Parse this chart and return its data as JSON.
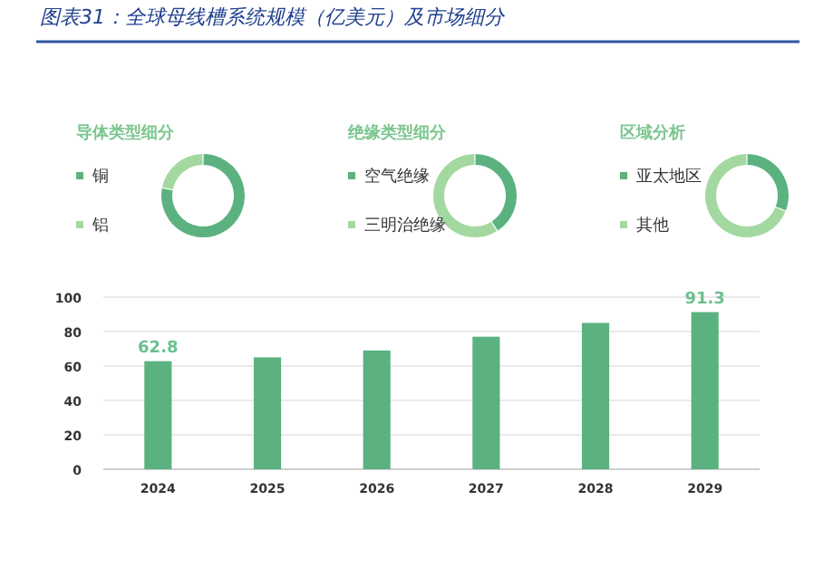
{
  "chart_data": [
    {
      "type": "donut",
      "title": "导体类型细分",
      "categories": [
        "铜",
        "铝"
      ],
      "values": [
        78,
        22
      ],
      "colors": [
        "#5bb280",
        "#a3d9a0"
      ],
      "legend": "left"
    },
    {
      "type": "donut",
      "title": "绝缘类型细分",
      "categories": [
        "空气绝缘",
        "三明治绝缘"
      ],
      "values": [
        41,
        59
      ],
      "colors": [
        "#5bb280",
        "#a3d9a0"
      ],
      "legend": "left"
    },
    {
      "type": "donut",
      "title": "区域分析",
      "categories": [
        "亚太地区",
        "其他"
      ],
      "values": [
        31,
        69
      ],
      "colors": [
        "#5bb280",
        "#a3d9a0"
      ],
      "legend": "left"
    },
    {
      "type": "bar",
      "title": "图表31：全球母线槽系统规模（亿美元）及市场细分",
      "categories": [
        "2024",
        "2025",
        "2026",
        "2027",
        "2028",
        "2029"
      ],
      "series": [
        {
          "color": "#5bb280",
          "values": [
            62.8,
            65,
            69,
            77,
            85,
            91.3
          ],
          "value_labels": [
            "62.8",
            null,
            null,
            null,
            null,
            "91.3"
          ]
        }
      ],
      "ylim": [
        0,
        100
      ],
      "yticks": [
        0,
        20,
        40,
        60,
        80,
        100
      ],
      "grid": "y"
    }
  ]
}
